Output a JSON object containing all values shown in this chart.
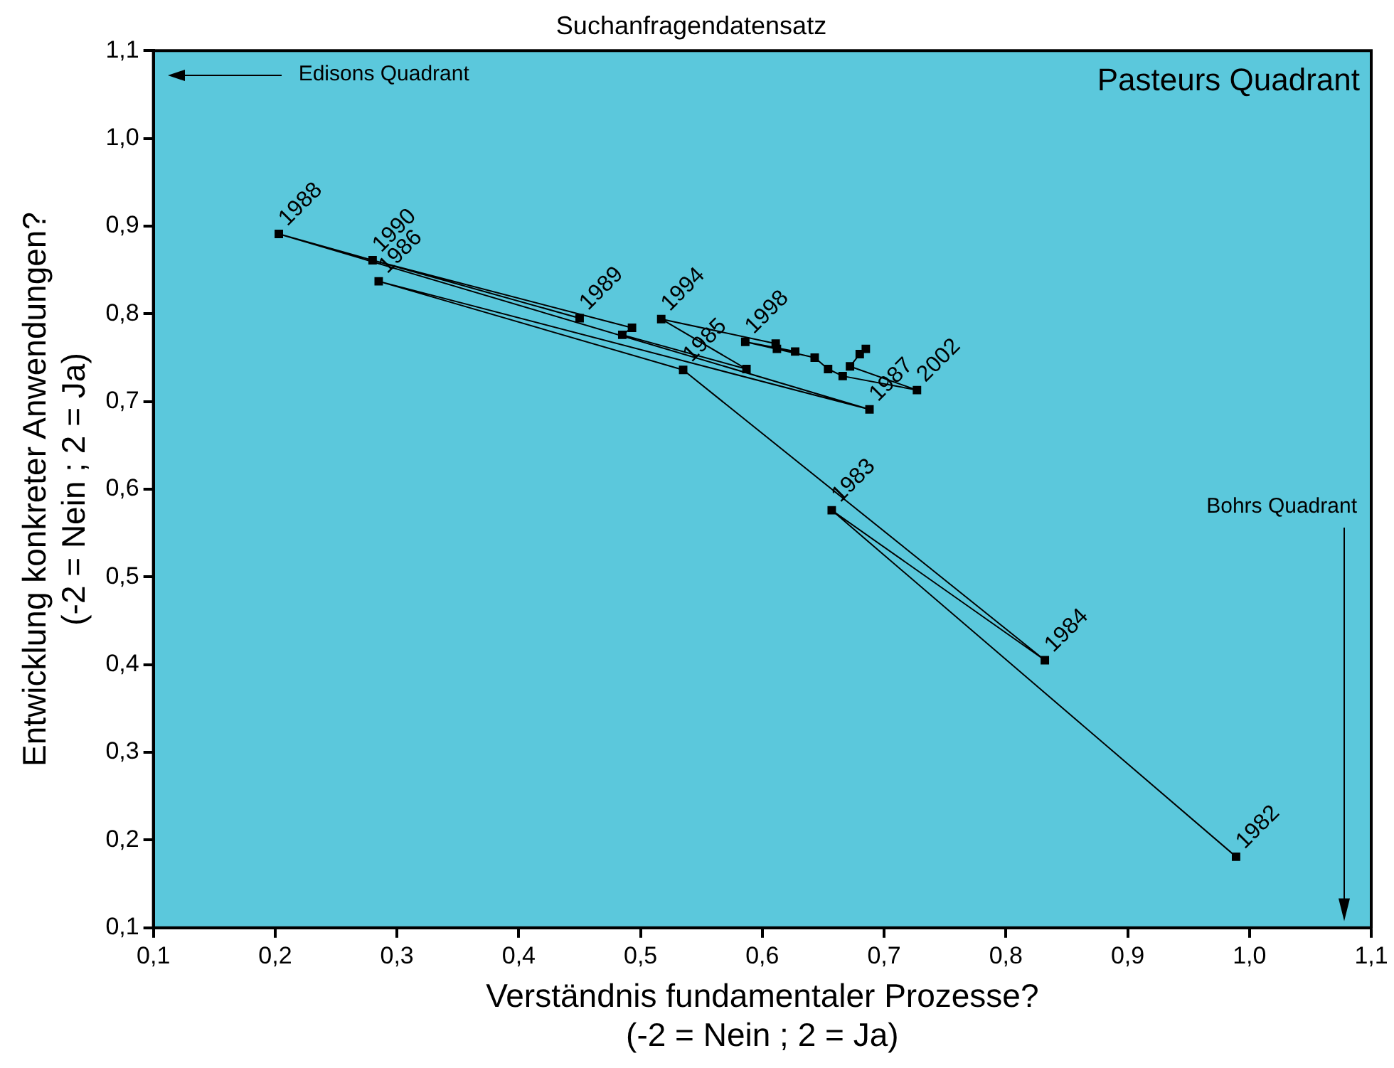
{
  "chart_data": {
    "type": "line",
    "title": "Suchanfragendatensatz",
    "xlabel": "Verständnis fundamentaler Prozesse?\n(-2 = Nein ; 2 = Ja)",
    "ylabel": "Entwicklung konkreter Anwendungen?\n(-2 = Nein ; 2 = Ja)",
    "x": [
      0.989,
      0.657,
      0.832,
      0.535,
      0.285,
      0.688,
      0.203,
      0.45,
      0.28,
      0.493,
      0.485,
      0.587,
      0.517,
      0.611,
      0.612,
      0.627,
      0.586,
      0.643,
      0.654,
      0.666,
      0.727,
      0.672,
      0.68,
      0.685
    ],
    "series": [
      {
        "color": "#000000",
        "values": [
          0.181,
          0.576,
          0.405,
          0.736,
          0.837,
          0.691,
          0.891,
          0.795,
          0.861,
          0.784,
          0.776,
          0.737,
          0.794,
          0.766,
          0.76,
          0.757,
          0.768,
          0.75,
          0.737,
          0.729,
          0.713,
          0.74,
          0.754,
          0.76
        ]
      }
    ],
    "marker": "square",
    "line_style": "solid",
    "grid": false,
    "legend": false,
    "xlim": [
      0.1,
      1.1
    ],
    "ylim": [
      0.1,
      1.1
    ],
    "xticks": [
      {
        "value": 0.1,
        "label": "0,1"
      },
      {
        "value": 0.2,
        "label": "0,2"
      },
      {
        "value": 0.3,
        "label": "0,3"
      },
      {
        "value": 0.4,
        "label": "0,4"
      },
      {
        "value": 0.5,
        "label": "0,5"
      },
      {
        "value": 0.6,
        "label": "0,6"
      },
      {
        "value": 0.7,
        "label": "0,7"
      },
      {
        "value": 0.8,
        "label": "0,8"
      },
      {
        "value": 0.9,
        "label": "0,9"
      },
      {
        "value": 1.0,
        "label": "1,0"
      },
      {
        "value": 1.1,
        "label": "1,1"
      }
    ],
    "yticks": [
      {
        "value": 0.1,
        "label": "0,1"
      },
      {
        "value": 0.2,
        "label": "0,2"
      },
      {
        "value": 0.3,
        "label": "0,3"
      },
      {
        "value": 0.4,
        "label": "0,4"
      },
      {
        "value": 0.5,
        "label": "0,5"
      },
      {
        "value": 0.6,
        "label": "0,6"
      },
      {
        "value": 0.7,
        "label": "0,7"
      },
      {
        "value": 0.8,
        "label": "0,8"
      },
      {
        "value": 0.9,
        "label": "0,9"
      },
      {
        "value": 1.0,
        "label": "1,0"
      },
      {
        "value": 1.1,
        "label": "1,1"
      }
    ],
    "annotations": [
      "Edisons Quadrant",
      "Pasteurs Quadrant",
      "Bohrs Quadrant",
      {
        "text": "1982",
        "x": 0.989,
        "y": 0.181
      },
      {
        "text": "1983",
        "x": 0.657,
        "y": 0.576
      },
      {
        "text": "1984",
        "x": 0.832,
        "y": 0.405
      },
      {
        "text": "1985",
        "x": 0.535,
        "y": 0.736
      },
      {
        "text": "1986",
        "x": 0.285,
        "y": 0.837
      },
      {
        "text": "1987",
        "x": 0.688,
        "y": 0.691
      },
      {
        "text": "1988",
        "x": 0.203,
        "y": 0.891
      },
      {
        "text": "1989",
        "x": 0.45,
        "y": 0.795
      },
      {
        "text": "1990",
        "x": 0.28,
        "y": 0.861
      },
      {
        "text": "1994",
        "x": 0.517,
        "y": 0.794
      },
      {
        "text": "1998",
        "x": 0.586,
        "y": 0.768
      },
      {
        "text": "2002",
        "x": 0.727,
        "y": 0.713
      }
    ]
  }
}
